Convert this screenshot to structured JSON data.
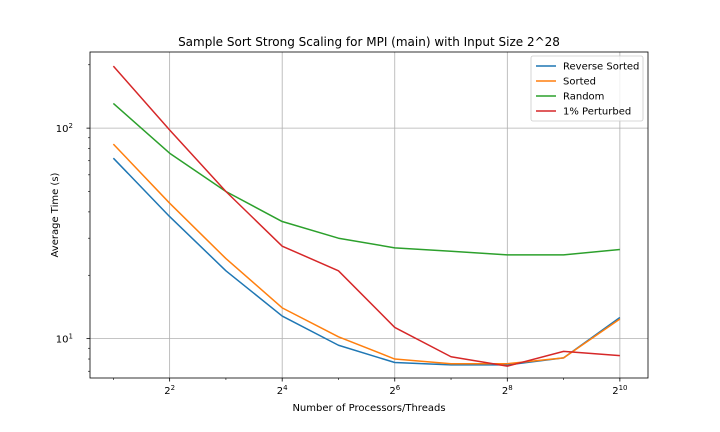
{
  "chart_data": {
    "type": "line",
    "title": "Sample Sort Strong Scaling for MPI (main) with Input Size 2^28",
    "xlabel": "Number of Processors/Threads",
    "ylabel": "Average Time (s)",
    "x_scale": "log2",
    "y_scale": "log10",
    "xlim": [
      1.5,
      1448
    ],
    "ylim": [
      6.5,
      230
    ],
    "x_ticks": [
      {
        "value": 4,
        "base": "2",
        "exp": "2"
      },
      {
        "value": 16,
        "base": "2",
        "exp": "4"
      },
      {
        "value": 64,
        "base": "2",
        "exp": "6"
      },
      {
        "value": 256,
        "base": "2",
        "exp": "8"
      },
      {
        "value": 1024,
        "base": "2",
        "exp": "10"
      }
    ],
    "y_ticks": [
      {
        "value": 10,
        "base": "10",
        "exp": "1"
      },
      {
        "value": 100,
        "base": "10",
        "exp": "2"
      }
    ],
    "grid": true,
    "legend_position": "top-right",
    "x": [
      2,
      4,
      8,
      16,
      32,
      64,
      128,
      256,
      512,
      1024
    ],
    "series": [
      {
        "name": "Reverse Sorted",
        "color": "#1f77b4",
        "values": [
          72,
          38,
          21,
          12.8,
          9.3,
          7.7,
          7.5,
          7.5,
          8.1,
          12.6
        ]
      },
      {
        "name": "Sorted",
        "color": "#ff7f0e",
        "values": [
          84,
          44,
          24,
          14,
          10.2,
          8.0,
          7.6,
          7.6,
          8.1,
          12.4
        ]
      },
      {
        "name": "Random",
        "color": "#2ca02c",
        "values": [
          131,
          76,
          50,
          36,
          30,
          27,
          26,
          25,
          25,
          26.5
        ]
      },
      {
        "name": "1% Perturbed",
        "color": "#d62728",
        "values": [
          197,
          98,
          50,
          27.5,
          21,
          11.3,
          8.2,
          7.4,
          8.7,
          8.3
        ]
      }
    ]
  }
}
